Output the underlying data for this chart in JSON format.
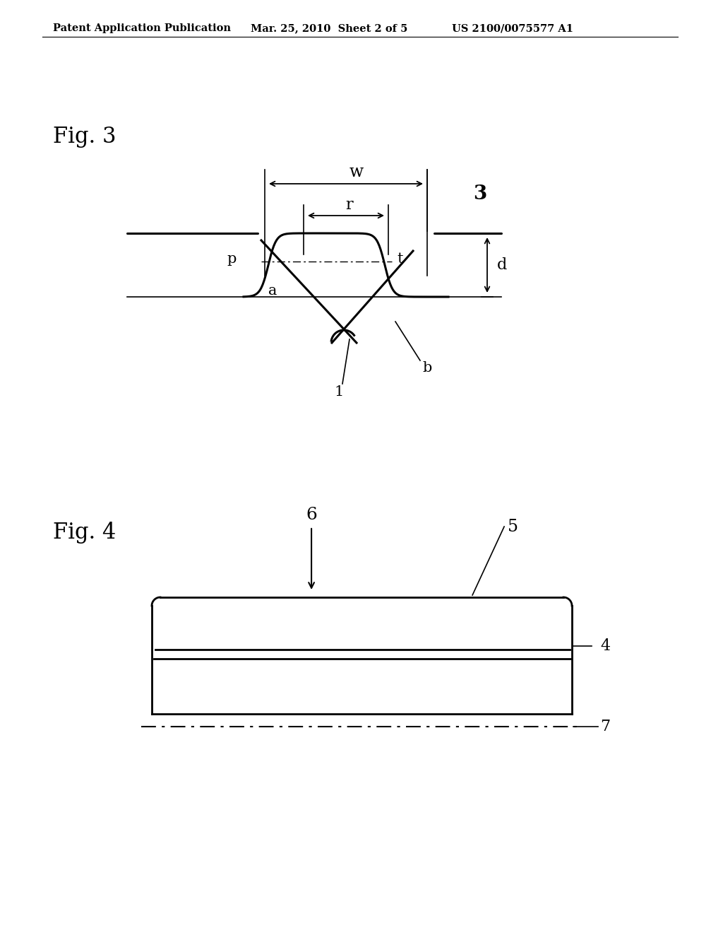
{
  "bg_color": "#ffffff",
  "header_left": "Patent Application Publication",
  "header_mid": "Mar. 25, 2010  Sheet 2 of 5",
  "header_right": "US 2100/0075577 A1",
  "fig3_label": "Fig. 3",
  "fig4_label": "Fig. 4",
  "fig3_annot": {
    "w": "w",
    "r": "r",
    "d": "d",
    "p": "p",
    "t": "t",
    "a": "a",
    "b": "b",
    "num1": "1",
    "num3": "3"
  },
  "fig4_annot": {
    "num4": "4",
    "num5": "5",
    "num6": "6",
    "num7": "7"
  }
}
